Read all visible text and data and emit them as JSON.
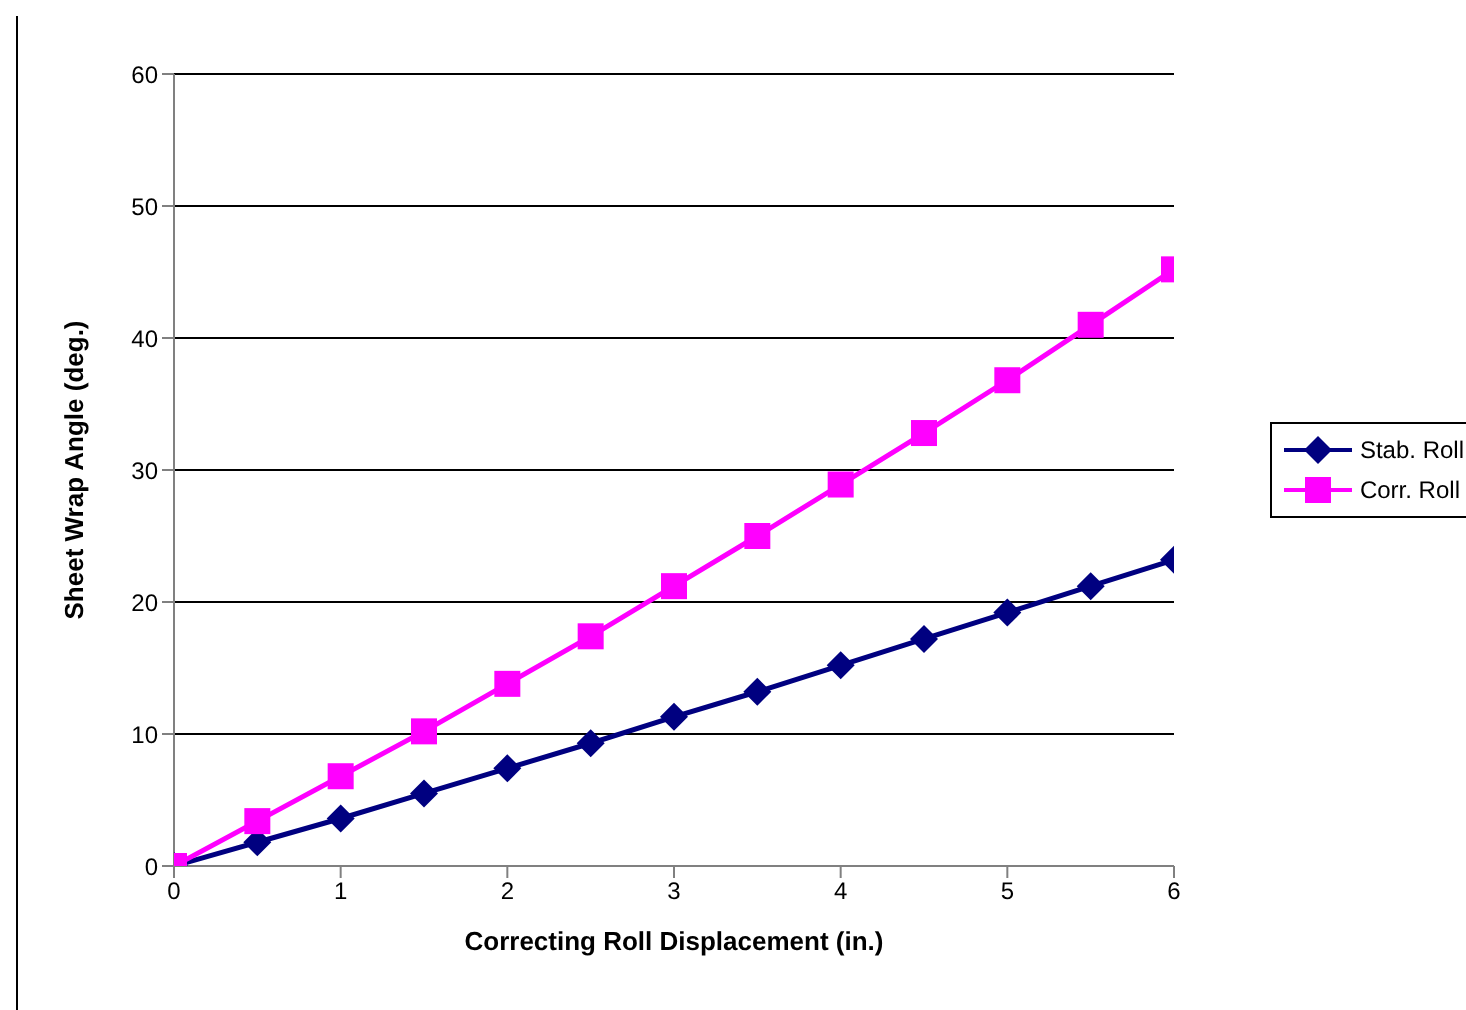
{
  "chart_data": {
    "type": "line",
    "xlabel": "Correcting Roll Displacement (in.)",
    "ylabel": "Sheet Wrap Angle (deg.)",
    "x": [
      0,
      0.5,
      1,
      1.5,
      2,
      2.5,
      3,
      3.5,
      4,
      4.5,
      5,
      5.5,
      6
    ],
    "series": [
      {
        "name": "Stab. Roll",
        "color": "#000080",
        "marker": "diamond",
        "values": [
          0,
          1.8,
          3.6,
          5.5,
          7.4,
          9.3,
          11.3,
          13.2,
          15.2,
          17.2,
          19.2,
          21.2,
          23.2
        ]
      },
      {
        "name": "Corr. Roll",
        "color": "#ff00ff",
        "marker": "square",
        "values": [
          0,
          3.4,
          6.8,
          10.2,
          13.8,
          17.4,
          21.2,
          25.0,
          28.9,
          32.8,
          36.8,
          41.0,
          45.2
        ]
      }
    ],
    "xlim": [
      0,
      6
    ],
    "xticks": [
      0,
      1,
      2,
      3,
      4,
      5,
      6
    ],
    "ylim": [
      0,
      60
    ],
    "yticks": [
      0,
      10,
      20,
      30,
      40,
      50,
      60
    ],
    "grid": "y",
    "legend": "right",
    "line_style": "solid"
  }
}
